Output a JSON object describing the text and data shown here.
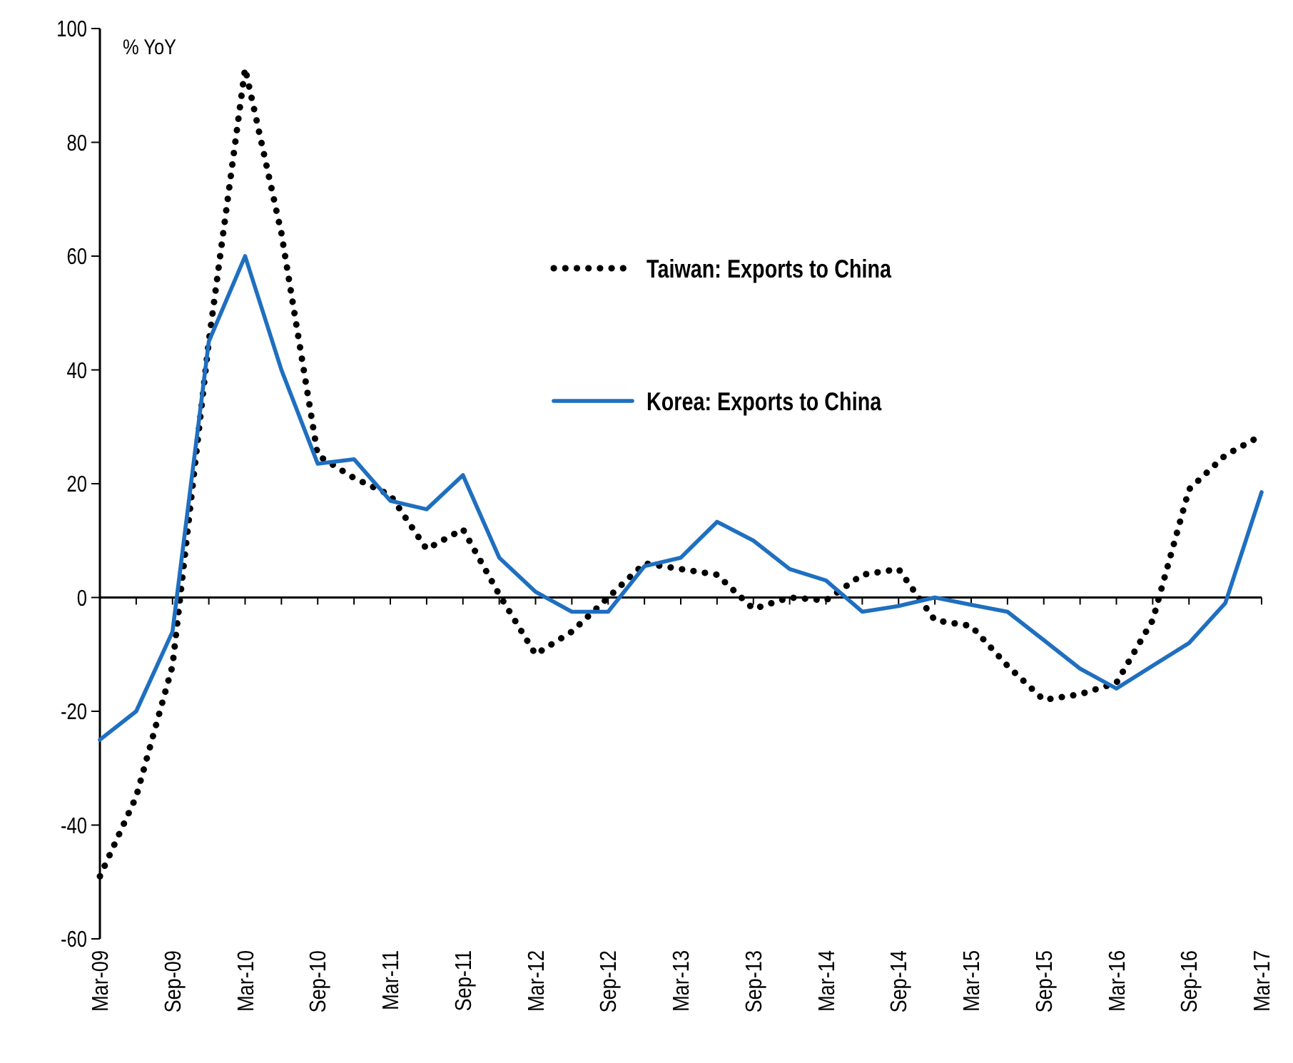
{
  "chart_data": {
    "type": "line",
    "ylabel": "% YoY",
    "categories": [
      "Mar-09",
      null,
      "Sep-09",
      null,
      "Mar-10",
      null,
      "Sep-10",
      null,
      "Mar-11",
      null,
      "Sep-11",
      null,
      "Mar-12",
      null,
      "Sep-12",
      null,
      "Mar-13",
      null,
      "Sep-13",
      null,
      "Mar-14",
      null,
      "Sep-14",
      null,
      "Mar-15",
      null,
      "Sep-15",
      null,
      "Mar-16",
      null,
      "Sep-16",
      null,
      "Mar-17"
    ],
    "series": [
      {
        "name": "Taiwan: Exports to China",
        "color": "#000000",
        "line_style": "dotted",
        "values": [
          -49,
          -35,
          -12,
          45,
          93,
          64,
          25,
          21,
          18,
          8.5,
          12,
          0.5,
          -10,
          -6,
          0,
          6,
          5,
          4,
          -2,
          0,
          -0.5,
          4,
          5,
          -4,
          -5,
          -12,
          -18,
          -17,
          -15,
          -4,
          19,
          25,
          28.5
        ]
      },
      {
        "name": "Korea: Exports to China",
        "color": "#1f6fc0",
        "line_style": "solid",
        "values": [
          -25,
          -20,
          -6,
          45,
          60,
          40,
          23.5,
          24.3,
          17,
          15.5,
          21.5,
          7,
          1,
          -2.5,
          -2.5,
          5.5,
          7,
          13.3,
          10,
          5,
          3,
          -2.5,
          -1.5,
          0,
          -1.3,
          -2.5,
          -7.5,
          -12.5,
          -16,
          -12,
          -8,
          -1,
          18.5
        ]
      }
    ],
    "ylim": [
      -60,
      100
    ],
    "yticks": [
      -60,
      -40,
      -20,
      0,
      20,
      40,
      60,
      80,
      100
    ],
    "legend": "top right"
  }
}
